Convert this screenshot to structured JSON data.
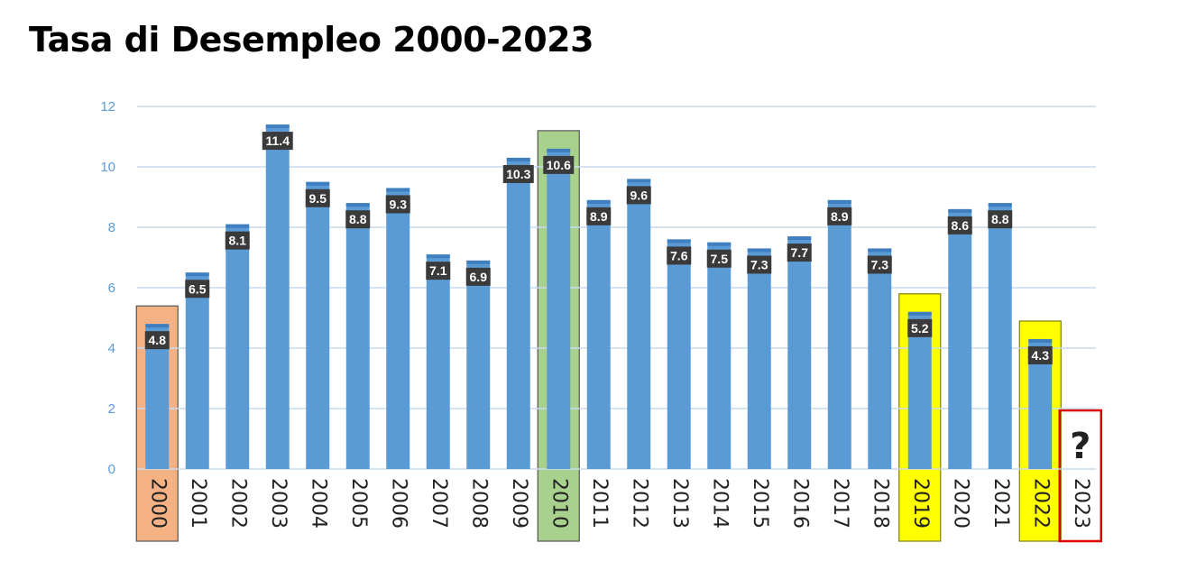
{
  "title": "Tasa di Desempleo 2000-2023",
  "chart_data": {
    "type": "bar",
    "categories": [
      "2000",
      "2001",
      "2002",
      "2003",
      "2004",
      "2005",
      "2006",
      "2007",
      "2008",
      "2009",
      "2010",
      "2011",
      "2012",
      "2013",
      "2014",
      "2015",
      "2016",
      "2017",
      "2018",
      "2019",
      "2020",
      "2021",
      "2022",
      "2023"
    ],
    "values": [
      4.8,
      6.5,
      8.1,
      11.4,
      9.5,
      8.8,
      9.3,
      7.1,
      6.9,
      10.3,
      10.6,
      8.9,
      9.6,
      7.6,
      7.5,
      7.3,
      7.7,
      8.9,
      7.3,
      5.2,
      8.6,
      8.8,
      4.3,
      null
    ],
    "labels": [
      "4.8",
      "6.5",
      "8.1",
      "11.4",
      "9.5",
      "8.8",
      "9.3",
      "7.1",
      "6.9",
      "10.3",
      "10.6",
      "8.9",
      "9.6",
      "7.6",
      "7.5",
      "7.3",
      "7.7",
      "8.9",
      "7.3",
      "5.2",
      "8.6",
      "8.8",
      "4.3",
      ""
    ],
    "ylim": [
      0,
      12
    ],
    "yticks": [
      "0",
      "2",
      "4",
      "6",
      "8",
      "10",
      "12"
    ],
    "grid": true,
    "colors": {
      "bar": "#5b9bd5",
      "tick": "#5b9bd5",
      "grid": "#c9dbee",
      "label_bg": "#3a3a3a"
    },
    "highlights": [
      {
        "category": "2000",
        "fill": "#f4b183",
        "stroke": "#555555"
      },
      {
        "category": "2010",
        "fill": "#a9d18e",
        "stroke": "#555555"
      },
      {
        "category": "2019",
        "fill": "#ffff00",
        "stroke": "#7f7f00"
      },
      {
        "category": "2022",
        "fill": "#ffff00",
        "stroke": "#7f7f00"
      },
      {
        "category": "2023",
        "fill": "none",
        "stroke": "#e00000",
        "placeholder_text": "?"
      }
    ]
  }
}
